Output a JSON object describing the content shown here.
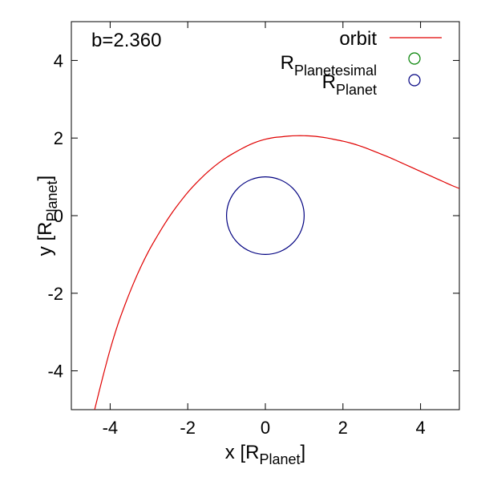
{
  "chart_data": {
    "type": "line",
    "annotation": "b=2.360",
    "xlabel": {
      "main": "x [R",
      "sub": "Planet",
      "close": "]"
    },
    "ylabel": {
      "main": "y [R",
      "sub": "Planet",
      "close": "]"
    },
    "xlim": [
      -5,
      5
    ],
    "ylim": [
      -5,
      5
    ],
    "xticks": [
      -4,
      -2,
      0,
      2,
      4
    ],
    "yticks": [
      -4,
      -2,
      0,
      2,
      4
    ],
    "grid": false,
    "legend_position": "top-right",
    "series": [
      {
        "name": "orbit",
        "style": "line",
        "color": "#e00000",
        "x": [
          -4.4,
          -4.2,
          -4.0,
          -3.8,
          -3.6,
          -3.4,
          -3.2,
          -3.0,
          -2.8,
          -2.6,
          -2.4,
          -2.2,
          -2.0,
          -1.8,
          -1.6,
          -1.4,
          -1.2,
          -1.0,
          -0.8,
          -0.6,
          -0.4,
          -0.2,
          0.0,
          0.2,
          0.4,
          0.6,
          0.8,
          1.0,
          1.2,
          1.4,
          1.6,
          1.8,
          2.0,
          2.2,
          2.4,
          2.6,
          2.8,
          3.0,
          3.2,
          3.4,
          3.6,
          3.8,
          4.0,
          4.2,
          4.4,
          4.6,
          4.8,
          5.0
        ],
        "y": [
          -5.0,
          -4.2,
          -3.45,
          -2.8,
          -2.25,
          -1.75,
          -1.3,
          -0.9,
          -0.55,
          -0.22,
          0.08,
          0.35,
          0.6,
          0.82,
          1.02,
          1.2,
          1.36,
          1.5,
          1.62,
          1.73,
          1.83,
          1.91,
          1.97,
          2.01,
          2.03,
          2.05,
          2.06,
          2.06,
          2.05,
          2.03,
          2.0,
          1.96,
          1.92,
          1.87,
          1.81,
          1.74,
          1.66,
          1.58,
          1.5,
          1.41,
          1.32,
          1.23,
          1.14,
          1.05,
          0.96,
          0.87,
          0.78,
          0.7
        ]
      },
      {
        "name_main": "R",
        "name_sub": "Planetesimal",
        "style": "circle",
        "color": "#008000",
        "center": [
          0,
          0
        ],
        "radius": 0
      },
      {
        "name_main": "R",
        "name_sub": "Planet",
        "style": "circle",
        "color": "#000080",
        "center": [
          0,
          0
        ],
        "radius": 1.0
      }
    ]
  }
}
